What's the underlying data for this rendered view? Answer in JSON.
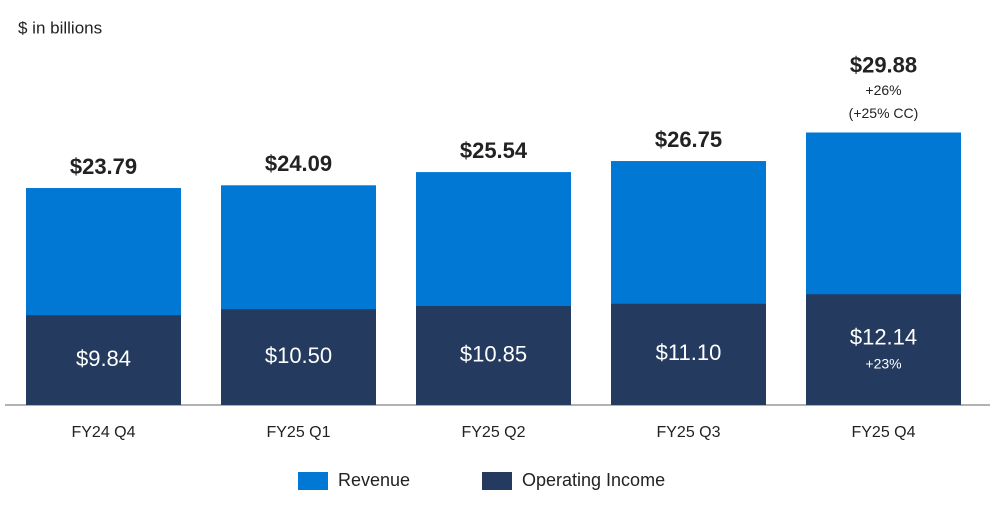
{
  "chart_data": {
    "type": "bar",
    "subtitle": "$ in billions",
    "categories": [
      "FY24 Q4",
      "FY25 Q1",
      "FY25 Q2",
      "FY25 Q3",
      "FY25 Q4"
    ],
    "series": [
      {
        "name": "Revenue",
        "color": "#0078d4",
        "values": [
          23.79,
          24.09,
          25.54,
          26.75,
          29.88
        ],
        "value_labels": [
          "$23.79",
          "$24.09",
          "$25.54",
          "$26.75",
          "$29.88"
        ],
        "value_notes": [
          null,
          null,
          null,
          null,
          [
            "+26%",
            "(+25% CC)"
          ]
        ]
      },
      {
        "name": "Operating Income",
        "color": "#243a5e",
        "values": [
          9.84,
          10.5,
          10.85,
          11.1,
          12.14
        ],
        "value_labels": [
          "$9.84",
          "$10.50",
          "$10.85",
          "$11.10",
          "$12.14"
        ],
        "value_notes": [
          null,
          null,
          null,
          null,
          [
            "+23%"
          ]
        ]
      }
    ]
  }
}
